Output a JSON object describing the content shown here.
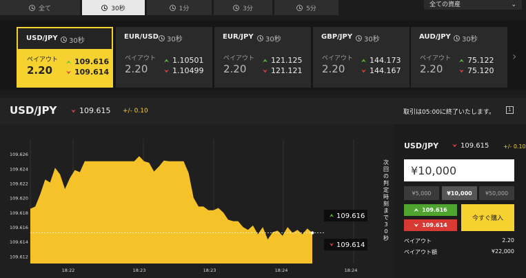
{
  "tabs": [
    {
      "label": "全て",
      "active": false
    },
    {
      "label": "30秒",
      "active": true
    },
    {
      "label": "1分",
      "active": false
    },
    {
      "label": "3分",
      "active": false
    },
    {
      "label": "5分",
      "active": false
    }
  ],
  "asset_filter": {
    "selected": "全ての資産"
  },
  "cards": [
    {
      "pair": "USD/JPY",
      "timeframe": "30秒",
      "payout_label": "ペイアウト",
      "payout": "2.20",
      "bid": "109.616",
      "ask": "109.614",
      "active": true
    },
    {
      "pair": "EUR/USD",
      "timeframe": "30秒",
      "payout_label": "ペイアウト",
      "payout": "2.20",
      "bid": "1.10501",
      "ask": "1.10499",
      "active": false
    },
    {
      "pair": "EUR/JPY",
      "timeframe": "30秒",
      "payout_label": "ペイアウト",
      "payout": "2.20",
      "bid": "121.125",
      "ask": "121.121",
      "active": false
    },
    {
      "pair": "GBP/JPY",
      "timeframe": "30秒",
      "payout_label": "ペイアウト",
      "payout": "2.20",
      "bid": "144.173",
      "ask": "144.167",
      "active": false
    },
    {
      "pair": "AUD/JPY",
      "timeframe": "30秒",
      "payout_label": "ペイアウト",
      "payout": "2.20",
      "bid": "75.122",
      "ask": "75.120",
      "active": false
    }
  ],
  "info_bar": {
    "pair": "USD/JPY",
    "price": "109.615",
    "change": "+/- 0.10",
    "notice": "取引は05:00に終了いたします。",
    "guide_icon": "1"
  },
  "chart": {
    "vertical_label": "次回の判定時刻まで30秒",
    "high_marker": "109.616",
    "low_marker": "109.614"
  },
  "chart_data": {
    "type": "area",
    "y_ticks": [
      "109.626",
      "109.624",
      "109.622",
      "109.620",
      "109.618",
      "109.616",
      "109.614",
      "109.612"
    ],
    "x_ticks": [
      "18:22",
      "18:23",
      "18:23",
      "18:24",
      "18:24"
    ],
    "ylim": [
      109.611,
      109.628
    ],
    "current_line": 109.6152,
    "series": [
      {
        "values": [
          109.6185,
          109.6188,
          109.6205,
          109.6225,
          109.6221,
          109.6241,
          109.6232,
          109.6212,
          109.6227,
          109.6238,
          109.6235,
          109.625,
          109.625,
          109.625,
          109.625,
          109.625,
          109.625,
          109.625,
          109.625,
          109.625,
          109.625,
          109.625,
          109.6257,
          109.625,
          109.6248,
          109.6236,
          109.6243,
          109.6251,
          109.625,
          109.625,
          109.625,
          109.625,
          109.6234,
          109.62,
          109.6188,
          109.6188,
          109.6183,
          109.6183,
          109.6186,
          109.618,
          109.617,
          109.6168,
          109.6168,
          109.616,
          109.6156,
          109.6162,
          109.615,
          109.616,
          109.6143,
          109.6153,
          109.6155,
          109.6148,
          109.616,
          109.6152,
          109.6156,
          109.615,
          109.6158,
          109.6152
        ]
      }
    ],
    "grid": true
  },
  "panel": {
    "pair": "USD/JPY",
    "price": "109.615",
    "change": "+/- 0.10",
    "amount": "¥10,000",
    "amount_options": [
      {
        "label": "¥5,000",
        "selected": false
      },
      {
        "label": "¥10,000",
        "selected": true
      },
      {
        "label": "¥50,000",
        "selected": false
      }
    ],
    "high_price": "109.616",
    "low_price": "109.614",
    "buy_label": "今すぐ購入",
    "payout_label": "ペイアウト",
    "payout_value": "2.20",
    "payout_amount_label": "ペイアウト額",
    "payout_amount_value": "¥22,000"
  }
}
